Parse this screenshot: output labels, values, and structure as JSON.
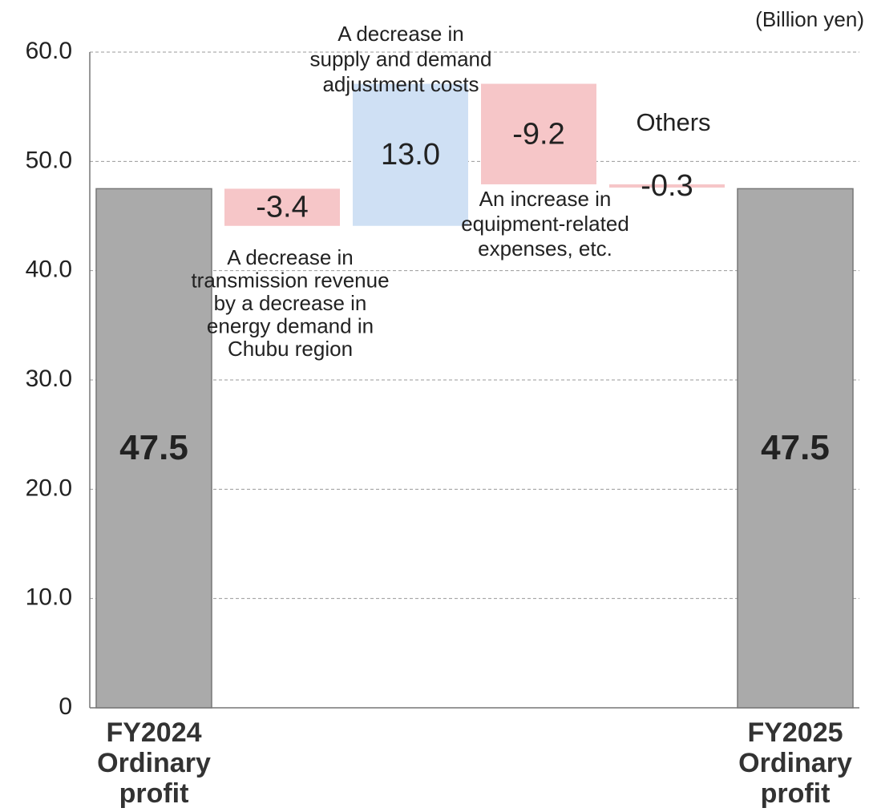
{
  "chart_data": {
    "type": "waterfall",
    "unit_label": "(Billion yen)",
    "categories": [
      "FY2024 Ordinary profit",
      null,
      null,
      null,
      null,
      "FY2025 Ordinary profit"
    ],
    "values": [
      47.5,
      -3.4,
      13.0,
      -9.2,
      -0.3,
      47.5
    ],
    "value_labels": [
      "47.5",
      "-3.4",
      "13.0",
      "-9.2",
      "-0.3",
      "47.5"
    ],
    "is_total": [
      true,
      false,
      false,
      false,
      false,
      true
    ],
    "colors": [
      "#aaaaaa",
      "#f6c6c8",
      "#cfe0f4",
      "#f6c6c8",
      "#f6c6c8",
      "#aaaaaa"
    ],
    "annotations": [
      [
        "A decrease in",
        "transmission revenue",
        "by a decrease in",
        "energy demand in",
        "Chubu region"
      ],
      [
        "A decrease in",
        "supply and demand",
        "adjustment costs"
      ],
      [
        "An increase in",
        "equipment-related",
        "expenses, etc."
      ],
      [
        "Others"
      ]
    ],
    "ylim": [
      0,
      60
    ],
    "yticks": [
      0,
      {
        "value": 10,
        "label": "10.0"
      },
      {
        "value": 20,
        "label": "20.0"
      },
      {
        "value": 30,
        "label": "30.0"
      },
      {
        "value": 40,
        "label": "40.0"
      },
      {
        "value": 50,
        "label": "50.0"
      },
      {
        "value": 60,
        "label": "60.0"
      }
    ],
    "grid": true
  }
}
